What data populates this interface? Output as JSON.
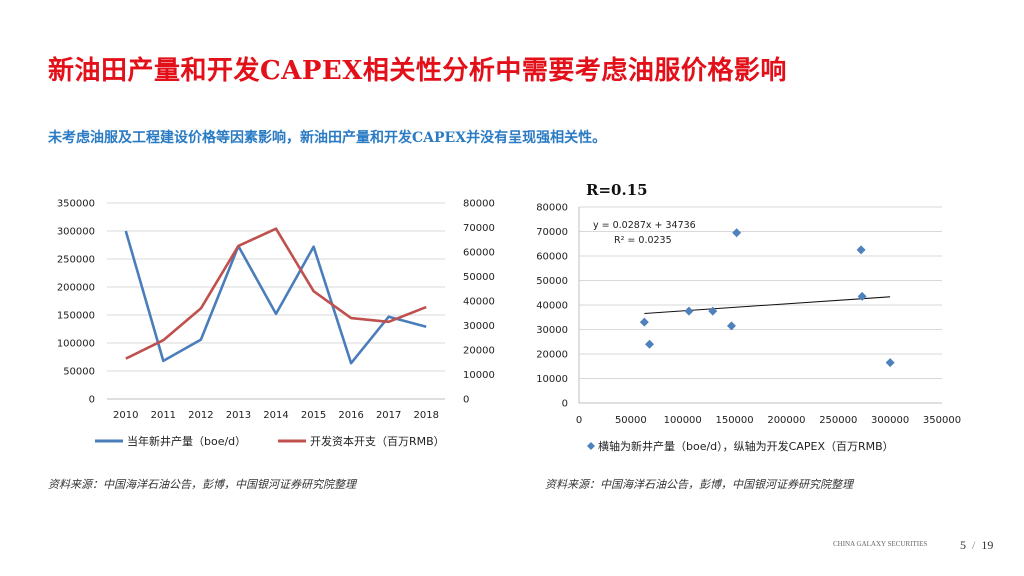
{
  "header": {
    "title": "新油田产量和开发CAPEX相关性分析中需要考虑油服价格影响",
    "subtitle": "未考虑油服及工程建设价格等因素影响，新油田产量和开发CAPEX并没有呈现强相关性。"
  },
  "sources": {
    "left": "资料来源：中国海洋石油公告，彭博，中国银河证券研究院整理",
    "right": "资料来源：中国海洋石油公告，彭博，中国银河证券研究院整理"
  },
  "footer": {
    "company": "CHINA GALAXY SECURITIES",
    "page_current": "5",
    "page_separator": "/",
    "page_total": "19"
  },
  "colors": {
    "title": "#e3101a",
    "subtitle": "#2b7bc4",
    "blue_series": "#4a7ebb",
    "red_series": "#c0504d",
    "scatter_point": "#4f81bd"
  },
  "chart_data": [
    {
      "type": "line",
      "x": [
        "2010",
        "2011",
        "2012",
        "2013",
        "2014",
        "2015",
        "2016",
        "2017",
        "2018"
      ],
      "y_left": {
        "ylim": [
          0,
          350000
        ],
        "ticks": [
          "0",
          "50000",
          "100000",
          "150000",
          "200000",
          "250000",
          "300000",
          "350000"
        ]
      },
      "y_right": {
        "ylim": [
          0,
          80000
        ],
        "ticks": [
          "0",
          "10000",
          "20000",
          "30000",
          "40000",
          "50000",
          "60000",
          "70000",
          "80000"
        ]
      },
      "series": [
        {
          "name": "当年新井产量（boe/d）",
          "axis": "left",
          "color": "#4a7ebb",
          "values": [
            300000,
            68000,
            106000,
            273000,
            152000,
            272000,
            64000,
            147000,
            129000
          ]
        },
        {
          "name": "开发资本开支（百万RMB）",
          "axis": "right",
          "color": "#c0504d",
          "values": [
            16500,
            24000,
            37000,
            62500,
            69500,
            44000,
            33000,
            31500,
            37500
          ]
        }
      ],
      "legend": "bottom"
    },
    {
      "type": "scatter",
      "title": "R=0.15",
      "xlim": [
        0,
        350000
      ],
      "ylim": [
        0,
        80000
      ],
      "x_ticks": [
        "0",
        "50000",
        "100000",
        "150000",
        "200000",
        "250000",
        "300000",
        "350000"
      ],
      "y_ticks": [
        "0",
        "10000",
        "20000",
        "30000",
        "40000",
        "50000",
        "60000",
        "70000",
        "80000"
      ],
      "points": [
        {
          "x": 63000,
          "y": 33000
        },
        {
          "x": 68000,
          "y": 24000
        },
        {
          "x": 106000,
          "y": 37500
        },
        {
          "x": 129000,
          "y": 37500
        },
        {
          "x": 147000,
          "y": 31500
        },
        {
          "x": 152000,
          "y": 69500
        },
        {
          "x": 272000,
          "y": 62500
        },
        {
          "x": 273000,
          "y": 43500
        },
        {
          "x": 300000,
          "y": 16500
        }
      ],
      "trendline": {
        "slope": 0.0287,
        "intercept": 34736,
        "x_from": 63000,
        "x_to": 300000
      },
      "annotations": {
        "equation": "y = 0.0287x + 34736",
        "r2": "R² = 0.0235"
      },
      "legend_label": "横轴为新井产量（boe/d），纵轴为开发CAPEX（百万RMB）",
      "legend": "bottom"
    }
  ]
}
